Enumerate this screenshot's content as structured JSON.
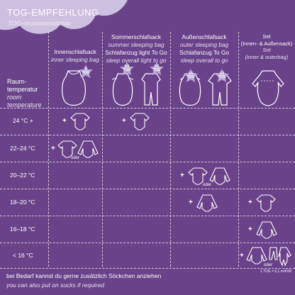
{
  "header": {
    "title": "TOG-EMPFEHLUNG",
    "subtitle": "TOG-recommendation"
  },
  "row_header": {
    "label_de_1": "Raum-",
    "label_de_2": "temperatur",
    "label_en_1": "room",
    "label_en_2": "temperature"
  },
  "columns": [
    {
      "de": "Innenschlafsack",
      "en": "inner sleeping bag"
    },
    {
      "de": "Sommerschlafsack",
      "en": "summer sleeping bag",
      "de2": "Schlafanzug light To Go",
      "en2": "sleep overall light to go"
    },
    {
      "de": "Außenschlafsack",
      "en": "outer sleeping bag",
      "de2": "Schlafanzug To Go",
      "en2": "sleep overall to go"
    },
    {
      "de": "Set",
      "de_sub": "(Innen- & Außensack)",
      "en": "Set",
      "en_sub": "(inner & outerbag)"
    }
  ],
  "tog_badges": [
    {
      "value": "2",
      "unit": "TOG"
    },
    {
      "value": "0.5",
      "unit": "TOG"
    },
    {
      "value": "0.5",
      "unit": "TOG"
    },
    {
      "value": "1.5",
      "unit": "TOG"
    },
    {
      "value": "1.5",
      "unit": "TOG"
    }
  ],
  "rows": [
    {
      "temp": "24 °C +"
    },
    {
      "temp": "22–24 °C"
    },
    {
      "temp": "20–22 °C"
    },
    {
      "temp": "18–20 °C"
    },
    {
      "temp": "16–18 °C"
    },
    {
      "temp": "< 16 °C"
    }
  ],
  "symbols": {
    "plus": "+",
    "oder": "oder"
  },
  "footer": {
    "note_de": "bei Bedarf kannst du gerne zusätzlich Söckchen anziehen",
    "note_en": "you can also put on socks if required",
    "unit_note": "1 TOG = 0,1 m²K/W"
  },
  "colors": {
    "background": "#6a4289",
    "cloud": "#cdbfe0",
    "star": "#b9a7d6",
    "line": "#ffffff"
  },
  "icons": [
    "cloud-icon",
    "star-badge-icon",
    "sleeping-bag-icon",
    "sleep-overall-icon",
    "bodysuit-icon",
    "longsleeve-bodysuit-icon",
    "pajama-icon"
  ]
}
